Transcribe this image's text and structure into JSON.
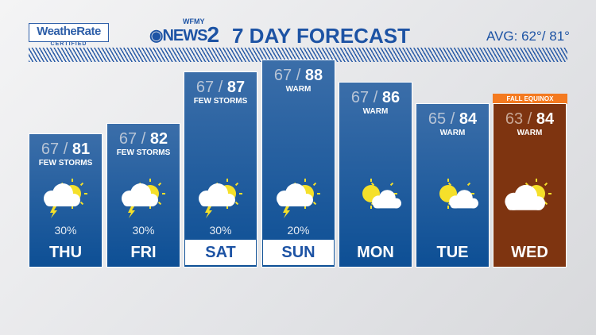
{
  "header": {
    "logo": "WeatheRate",
    "logo_sub": "CERTIFIED",
    "brand_top": "WFMY",
    "brand": "NEWS",
    "brand_num": "2",
    "title": "7 DAY FORECAST",
    "avg": "AVG: 62°/ 81°"
  },
  "days": [
    {
      "day": "THU",
      "lo": "67",
      "hi": "81",
      "cond": "FEW STORMS",
      "pct": "30%",
      "icon": "storm-icon"
    },
    {
      "day": "FRI",
      "lo": "67",
      "hi": "82",
      "cond": "FEW STORMS",
      "pct": "30%",
      "icon": "storm-icon"
    },
    {
      "day": "SAT",
      "lo": "67",
      "hi": "87",
      "cond": "FEW STORMS",
      "pct": "30%",
      "icon": "storm-icon"
    },
    {
      "day": "SUN",
      "lo": "67",
      "hi": "88",
      "cond": "WARM",
      "pct": "20%",
      "icon": "storm-icon"
    },
    {
      "day": "MON",
      "lo": "67",
      "hi": "86",
      "cond": "WARM",
      "pct": "",
      "icon": "partly-sunny-icon"
    },
    {
      "day": "TUE",
      "lo": "65",
      "hi": "84",
      "cond": "WARM",
      "pct": "",
      "icon": "partly-sunny-icon"
    },
    {
      "day": "WED",
      "lo": "63",
      "hi": "84",
      "cond": "WARM",
      "pct": "",
      "icon": "partly-cloudy-icon"
    }
  ],
  "wed_tag": "FALL EQUINOX",
  "colors": {
    "card_blue": "#0d4f95",
    "card_wed": "#7e3410",
    "tag": "#f47a20",
    "brand": "#1d53a4"
  }
}
